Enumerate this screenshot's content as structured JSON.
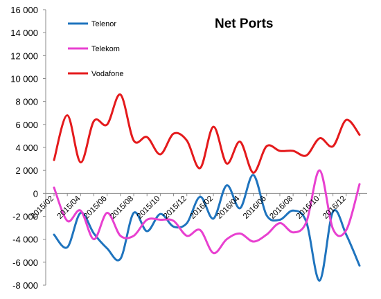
{
  "chart_data": {
    "type": "line",
    "title": "Net Ports",
    "xlabel": "",
    "ylabel": "",
    "ylim": [
      -8000,
      16000
    ],
    "ytick_step": 2000,
    "yticks": [
      "-8 000",
      "-6 000",
      "-4 000",
      "-2 000",
      "0",
      "2 000",
      "4 000",
      "6 000",
      "8 000",
      "10 000",
      "12 000",
      "14 000",
      "16 000"
    ],
    "grid": false,
    "legend_position": "top-left",
    "x": [
      "2015/02",
      "2015/03",
      "2015/04",
      "2015/05",
      "2015/06",
      "2015/07",
      "2015/08",
      "2015/09",
      "2015/10",
      "2015/11",
      "2015/12",
      "2016/01",
      "2016/02",
      "2016/03",
      "2016/04",
      "2016/05",
      "2016/06",
      "2016/07",
      "2016/08",
      "2016/09",
      "2016/10",
      "2016/11",
      "2016/12",
      "2017/01"
    ],
    "x_tick_labels": [
      "2015/02",
      "2015/04",
      "2015/06",
      "2015/08",
      "2015/10",
      "2015/12",
      "2016/02",
      "2016/04",
      "2016/06",
      "2016/08",
      "2016/10",
      "2016/12"
    ],
    "series": [
      {
        "name": "Telenor",
        "color": "#1F74BE",
        "values": [
          -3600,
          -4700,
          -1700,
          -3500,
          -4800,
          -5700,
          -1700,
          -3300,
          -1800,
          -2900,
          -2600,
          -300,
          -2200,
          700,
          -1300,
          1600,
          -1900,
          -2300,
          -1500,
          -2500,
          -7600,
          -1600,
          -3600,
          -6300
        ]
      },
      {
        "name": "Telekom",
        "color": "#E840D0",
        "values": [
          500,
          -2400,
          -1500,
          -4000,
          -1700,
          -3700,
          -3700,
          -2300,
          -2300,
          -2400,
          -3700,
          -3200,
          -5200,
          -4000,
          -3500,
          -4200,
          -3600,
          -2600,
          -3400,
          -2500,
          2000,
          -3100,
          -3200,
          800
        ]
      },
      {
        "name": "Vodafone",
        "color": "#E41A1C",
        "values": [
          2900,
          6800,
          2700,
          6300,
          6000,
          8600,
          4600,
          4900,
          3400,
          5200,
          4600,
          2200,
          5800,
          2600,
          4500,
          1800,
          4100,
          3700,
          3700,
          3300,
          4800,
          4100,
          6400,
          5100
        ]
      }
    ]
  }
}
